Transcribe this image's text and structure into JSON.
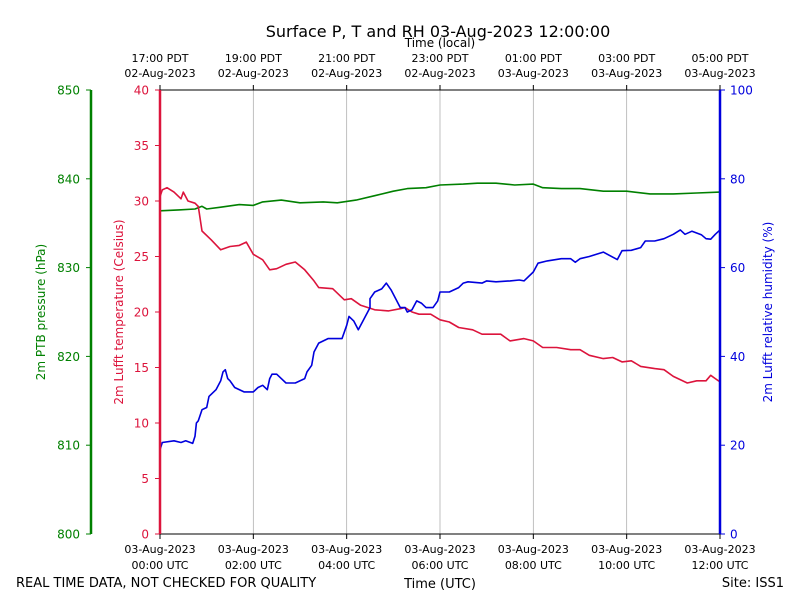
{
  "chart_data": {
    "type": "line",
    "title": "Surface P, T and RH 03-Aug-2023 12:00:00",
    "bottom_axis": {
      "label": "Time (UTC)",
      "range_hours": [
        0,
        12
      ],
      "ticks": [
        {
          "hour": 0,
          "date": "03-Aug-2023",
          "time": "00:00 UTC"
        },
        {
          "hour": 2,
          "date": "03-Aug-2023",
          "time": "02:00 UTC"
        },
        {
          "hour": 4,
          "date": "03-Aug-2023",
          "time": "04:00 UTC"
        },
        {
          "hour": 6,
          "date": "03-Aug-2023",
          "time": "06:00 UTC"
        },
        {
          "hour": 8,
          "date": "03-Aug-2023",
          "time": "08:00 UTC"
        },
        {
          "hour": 10,
          "date": "03-Aug-2023",
          "time": "10:00 UTC"
        },
        {
          "hour": 12,
          "date": "03-Aug-2023",
          "time": "12:00 UTC"
        }
      ]
    },
    "top_axis": {
      "label": "Time (local)",
      "ticks": [
        {
          "hour": 0,
          "time": "17:00 PDT",
          "date": "02-Aug-2023"
        },
        {
          "hour": 2,
          "time": "19:00 PDT",
          "date": "02-Aug-2023"
        },
        {
          "hour": 4,
          "time": "21:00 PDT",
          "date": "02-Aug-2023"
        },
        {
          "hour": 6,
          "time": "23:00 PDT",
          "date": "02-Aug-2023"
        },
        {
          "hour": 8,
          "time": "01:00 PDT",
          "date": "03-Aug-2023"
        },
        {
          "hour": 10,
          "time": "03:00 PDT",
          "date": "03-Aug-2023"
        },
        {
          "hour": 12,
          "time": "05:00 PDT",
          "date": "03-Aug-2023"
        }
      ]
    },
    "grid": "vertical",
    "axes": {
      "pressure": {
        "label": "2m PTB pressure (hPa)",
        "color": "#008000",
        "ylim": [
          800,
          850
        ],
        "ticks": [
          800,
          810,
          820,
          830,
          840,
          850
        ]
      },
      "temperature": {
        "label": "2m Lufft temperature (Celsius)",
        "color": "#dc143c",
        "ylim": [
          0,
          40
        ],
        "ticks": [
          0,
          5,
          10,
          15,
          20,
          25,
          30,
          35,
          40
        ]
      },
      "humidity": {
        "label": "2m Lufft relative humidity (%)",
        "color": "#0000dd",
        "ylim": [
          0,
          100
        ],
        "ticks": [
          0,
          20,
          40,
          60,
          80,
          100
        ]
      }
    },
    "series": [
      {
        "name": "2m PTB pressure",
        "axis": "pressure",
        "points": [
          [
            0,
            836.4
          ],
          [
            0.4,
            836.5
          ],
          [
            0.75,
            836.6
          ],
          [
            0.9,
            836.9
          ],
          [
            1.0,
            836.6
          ],
          [
            1.3,
            836.8
          ],
          [
            1.7,
            837.1
          ],
          [
            2.0,
            837.0
          ],
          [
            2.2,
            837.4
          ],
          [
            2.6,
            837.6
          ],
          [
            3.0,
            837.3
          ],
          [
            3.5,
            837.4
          ],
          [
            3.8,
            837.3
          ],
          [
            4.2,
            837.6
          ],
          [
            4.6,
            838.1
          ],
          [
            5.0,
            838.6
          ],
          [
            5.3,
            838.9
          ],
          [
            5.7,
            839.0
          ],
          [
            6.0,
            839.3
          ],
          [
            6.5,
            839.4
          ],
          [
            6.8,
            839.5
          ],
          [
            7.2,
            839.5
          ],
          [
            7.6,
            839.3
          ],
          [
            8.0,
            839.4
          ],
          [
            8.2,
            839.0
          ],
          [
            8.6,
            838.9
          ],
          [
            9.0,
            838.9
          ],
          [
            9.5,
            838.6
          ],
          [
            10.0,
            838.6
          ],
          [
            10.5,
            838.3
          ],
          [
            11.0,
            838.3
          ],
          [
            11.5,
            838.4
          ],
          [
            12.0,
            838.5
          ]
        ]
      },
      {
        "name": "2m Lufft temperature",
        "axis": "temperature",
        "points": [
          [
            0,
            30.4
          ],
          [
            0.05,
            31.0
          ],
          [
            0.15,
            31.2
          ],
          [
            0.3,
            30.8
          ],
          [
            0.45,
            30.2
          ],
          [
            0.5,
            30.8
          ],
          [
            0.6,
            30.0
          ],
          [
            0.75,
            29.8
          ],
          [
            0.82,
            29.5
          ],
          [
            0.9,
            27.3
          ],
          [
            1.1,
            26.5
          ],
          [
            1.3,
            25.6
          ],
          [
            1.5,
            25.9
          ],
          [
            1.7,
            26.0
          ],
          [
            1.85,
            26.3
          ],
          [
            2.0,
            25.2
          ],
          [
            2.2,
            24.7
          ],
          [
            2.35,
            23.8
          ],
          [
            2.5,
            23.9
          ],
          [
            2.7,
            24.3
          ],
          [
            2.9,
            24.5
          ],
          [
            3.1,
            23.8
          ],
          [
            3.3,
            22.8
          ],
          [
            3.4,
            22.2
          ],
          [
            3.7,
            22.1
          ],
          [
            3.95,
            21.1
          ],
          [
            4.1,
            21.2
          ],
          [
            4.3,
            20.6
          ],
          [
            4.6,
            20.2
          ],
          [
            4.9,
            20.1
          ],
          [
            5.15,
            20.3
          ],
          [
            5.25,
            20.4
          ],
          [
            5.4,
            20.0
          ],
          [
            5.55,
            19.8
          ],
          [
            5.8,
            19.8
          ],
          [
            6.0,
            19.3
          ],
          [
            6.2,
            19.1
          ],
          [
            6.4,
            18.6
          ],
          [
            6.7,
            18.4
          ],
          [
            6.9,
            18.0
          ],
          [
            7.3,
            18.0
          ],
          [
            7.5,
            17.4
          ],
          [
            7.8,
            17.6
          ],
          [
            8.0,
            17.4
          ],
          [
            8.2,
            16.8
          ],
          [
            8.5,
            16.8
          ],
          [
            8.8,
            16.6
          ],
          [
            9.0,
            16.6
          ],
          [
            9.2,
            16.1
          ],
          [
            9.5,
            15.8
          ],
          [
            9.7,
            15.9
          ],
          [
            9.9,
            15.5
          ],
          [
            10.1,
            15.6
          ],
          [
            10.3,
            15.1
          ],
          [
            10.6,
            14.9
          ],
          [
            10.8,
            14.8
          ],
          [
            11.0,
            14.2
          ],
          [
            11.3,
            13.6
          ],
          [
            11.5,
            13.8
          ],
          [
            11.7,
            13.8
          ],
          [
            11.8,
            14.3
          ],
          [
            11.9,
            14.0
          ],
          [
            12.0,
            13.7
          ]
        ]
      },
      {
        "name": "2m Lufft relative humidity",
        "axis": "humidity",
        "points": [
          [
            0,
            19
          ],
          [
            0.05,
            20.6
          ],
          [
            0.3,
            21
          ],
          [
            0.45,
            20.6
          ],
          [
            0.55,
            21
          ],
          [
            0.7,
            20.4
          ],
          [
            0.75,
            22
          ],
          [
            0.78,
            25
          ],
          [
            0.82,
            25.5
          ],
          [
            0.9,
            28
          ],
          [
            1.0,
            28.5
          ],
          [
            1.05,
            31
          ],
          [
            1.2,
            32.5
          ],
          [
            1.3,
            34.5
          ],
          [
            1.35,
            36.5
          ],
          [
            1.4,
            37
          ],
          [
            1.45,
            35
          ],
          [
            1.5,
            34.5
          ],
          [
            1.6,
            33
          ],
          [
            1.8,
            32
          ],
          [
            2.0,
            32
          ],
          [
            2.1,
            33
          ],
          [
            2.2,
            33.5
          ],
          [
            2.3,
            32.5
          ],
          [
            2.35,
            35
          ],
          [
            2.4,
            36
          ],
          [
            2.5,
            36
          ],
          [
            2.6,
            35
          ],
          [
            2.7,
            34
          ],
          [
            2.9,
            34
          ],
          [
            3.1,
            35
          ],
          [
            3.15,
            36.5
          ],
          [
            3.25,
            38
          ],
          [
            3.3,
            41
          ],
          [
            3.4,
            43
          ],
          [
            3.6,
            44
          ],
          [
            3.9,
            44
          ],
          [
            4.0,
            47
          ],
          [
            4.05,
            49
          ],
          [
            4.15,
            48
          ],
          [
            4.25,
            46
          ],
          [
            4.35,
            48
          ],
          [
            4.5,
            51
          ],
          [
            4.5,
            53
          ],
          [
            4.6,
            54.5
          ],
          [
            4.75,
            55.2
          ],
          [
            4.85,
            56.5
          ],
          [
            4.95,
            55
          ],
          [
            5.05,
            53
          ],
          [
            5.15,
            51
          ],
          [
            5.25,
            51
          ],
          [
            5.3,
            50
          ],
          [
            5.4,
            50.5
          ],
          [
            5.5,
            52.5
          ],
          [
            5.6,
            52
          ],
          [
            5.7,
            51
          ],
          [
            5.85,
            51
          ],
          [
            5.95,
            52.5
          ],
          [
            6.0,
            54.5
          ],
          [
            6.2,
            54.5
          ],
          [
            6.4,
            55.5
          ],
          [
            6.5,
            56.5
          ],
          [
            6.6,
            56.8
          ],
          [
            6.9,
            56.5
          ],
          [
            7.0,
            57
          ],
          [
            7.2,
            56.8
          ],
          [
            7.5,
            57
          ],
          [
            7.7,
            57.2
          ],
          [
            7.8,
            57
          ],
          [
            8.0,
            59
          ],
          [
            8.1,
            61
          ],
          [
            8.3,
            61.5
          ],
          [
            8.6,
            62
          ],
          [
            8.8,
            62
          ],
          [
            8.9,
            61.2
          ],
          [
            9.0,
            62
          ],
          [
            9.2,
            62.5
          ],
          [
            9.5,
            63.5
          ],
          [
            9.8,
            61.8
          ],
          [
            9.9,
            63.8
          ],
          [
            10.1,
            63.9
          ],
          [
            10.3,
            64.5
          ],
          [
            10.4,
            66
          ],
          [
            10.6,
            66
          ],
          [
            10.8,
            66.5
          ],
          [
            11.0,
            67.5
          ],
          [
            11.15,
            68.5
          ],
          [
            11.25,
            67.5
          ],
          [
            11.4,
            68.2
          ],
          [
            11.6,
            67.4
          ],
          [
            11.7,
            66.5
          ],
          [
            11.8,
            66.4
          ],
          [
            11.9,
            67.5
          ],
          [
            12.0,
            68.5
          ]
        ]
      }
    ],
    "footer_left": "REAL TIME DATA, NOT CHECKED FOR QUALITY",
    "footer_right": "Site: ISS1"
  }
}
